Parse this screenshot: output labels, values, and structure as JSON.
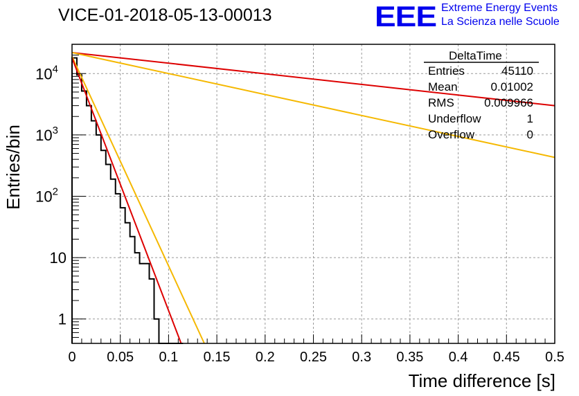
{
  "chart_data": {
    "type": "histogram",
    "title": "VICE-01-2018-05-13-00013",
    "xlabel": "Time difference [s]",
    "ylabel": "Entries/bin",
    "xlim": [
      0,
      0.5
    ],
    "ylim": [
      0.4,
      30000
    ],
    "yscale": "log",
    "grid": true,
    "x_ticks": [
      "0",
      "0.05",
      "0.1",
      "0.15",
      "0.2",
      "0.25",
      "0.3",
      "0.35",
      "0.4",
      "0.45",
      "0.5"
    ],
    "y_ticks": [
      {
        "value": 10000,
        "base": "10",
        "exp": "4"
      },
      {
        "value": 1000,
        "base": "10",
        "exp": "3"
      },
      {
        "value": 100,
        "base": "10",
        "exp": "2"
      },
      {
        "value": 10,
        "base": "10",
        "exp": ""
      },
      {
        "value": 1,
        "base": "1",
        "exp": ""
      }
    ],
    "histogram": {
      "bin_width": 0.005,
      "x_start": 0,
      "values": [
        18000,
        9500,
        5200,
        3000,
        1700,
        1000,
        560,
        330,
        190,
        110,
        65,
        37,
        22,
        12,
        8,
        8,
        4.5,
        1,
        0.4,
        0.4,
        0.4,
        0.4,
        0.4
      ]
    },
    "lines": [
      {
        "color": "#dd0000",
        "points": [
          [
            0,
            22000
          ],
          [
            0.5,
            3000
          ]
        ]
      },
      {
        "color": "#f5b800",
        "points": [
          [
            0,
            22000
          ],
          [
            0.5,
            430
          ]
        ]
      },
      {
        "color": "#f5b800",
        "points": [
          [
            0,
            19000
          ],
          [
            0.137,
            0.4
          ]
        ]
      },
      {
        "color": "#dd0000",
        "points": [
          [
            0,
            18000
          ],
          [
            0.113,
            0.4
          ]
        ]
      }
    ],
    "stats": {
      "title": "DeltaTime",
      "rows": [
        {
          "label": "Entries",
          "value": "45110"
        },
        {
          "label": "Mean",
          "value": "0.01002"
        },
        {
          "label": "RMS",
          "value": "0.009966"
        },
        {
          "label": "Underflow",
          "value": "1"
        },
        {
          "label": "Overflow",
          "value": "0"
        }
      ]
    }
  },
  "logo": {
    "text": "EEE",
    "line1": "Extreme Energy Events",
    "line2": "La Scienza nelle Scuole"
  }
}
